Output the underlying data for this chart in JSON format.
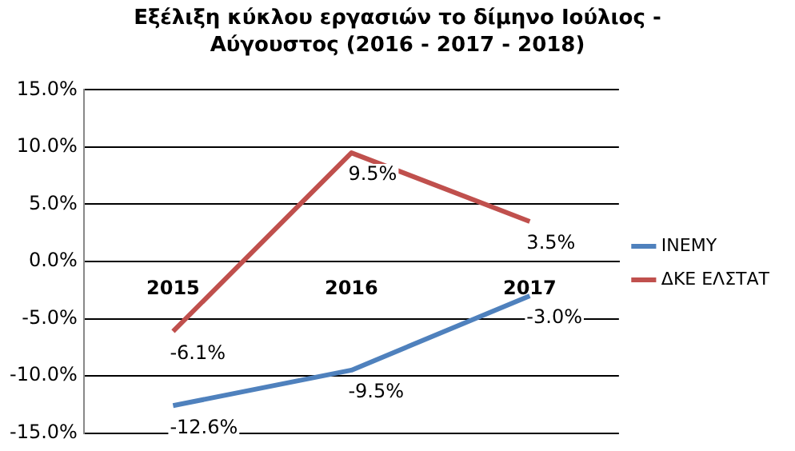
{
  "chart_data": {
    "type": "line",
    "title": "Εξέλιξη κύκλου εργασιών το δίμηνο Ιούλιος - Αύγουστος (2016 - 2017 - 2018)",
    "categories": [
      "2015",
      "2016",
      "2017"
    ],
    "series": [
      {
        "name": "ΙΝΕΜΥ",
        "color": "#4f81bd",
        "values": [
          -12.6,
          -9.5,
          -3.0
        ],
        "value_labels": [
          "-12.6%",
          "-9.5%",
          "-3.0%"
        ]
      },
      {
        "name": "ΔΚΕ ΕΛΣΤΑΤ",
        "color": "#c0504d",
        "values": [
          -6.1,
          9.5,
          3.5
        ],
        "value_labels": [
          "-6.1%",
          "9.5%",
          "3.5%"
        ]
      }
    ],
    "ylim": [
      -15,
      15
    ],
    "yticks": [
      {
        "value": -15,
        "label": "-15.0%"
      },
      {
        "value": -10,
        "label": "-10.0%"
      },
      {
        "value": -5,
        "label": "-5.0%"
      },
      {
        "value": 0,
        "label": "0.0%"
      },
      {
        "value": 5,
        "label": "5.0%"
      },
      {
        "value": 10,
        "label": "10.0%"
      },
      {
        "value": 15,
        "label": "15.0%"
      }
    ],
    "grid": "y",
    "legend": "right",
    "marker": "none",
    "line_style": "solid"
  }
}
